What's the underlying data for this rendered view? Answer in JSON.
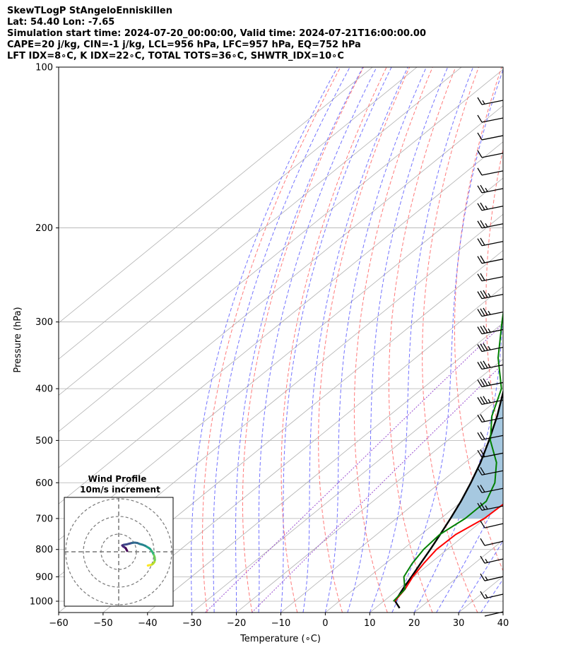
{
  "header": {
    "line1": "SkewTLogP StAngeloEnniskillen",
    "line2": "Lat: 54.40   Lon: -7.65",
    "line3": "Simulation start time: 2024-07-20_00:00:00, Valid time: 2024-07-21T16:00:00.00",
    "line4": "CAPE=20 j/kg, CIN=-1 j/kg, LCL=956 hPa, LFC=957 hPa, EQ=752 hPa",
    "line5": "LFT IDX=8∘C, K IDX=22∘C, TOTAL TOTS=36∘C, SHWTR_IDX=10∘C"
  },
  "colors": {
    "temperature": "#ff0000",
    "dewpoint": "#008000",
    "parcel": "#000000",
    "cape_fill": "#a6c8e0",
    "dry_adiabat": "#ff6b6b",
    "moist_adiabat": "#5a5aff",
    "mixing_ratio": "#9a4fd0",
    "isotherm": "#b0b0b0"
  },
  "chart_data": [
    {
      "type": "line",
      "kind": "skew-t log-p",
      "xlabel": "Temperature (∘C)",
      "ylabel": "Pressure (hPa)",
      "xlim": [
        -60,
        40
      ],
      "ylim": [
        1050,
        100
      ],
      "xticks": [
        -60,
        -50,
        -40,
        -30,
        -20,
        -10,
        0,
        10,
        20,
        30,
        40
      ],
      "yticks": [
        1000,
        900,
        800,
        700,
        600,
        500,
        400,
        300,
        200,
        100
      ],
      "y_scale": "log",
      "grid": true,
      "series": [
        {
          "role": "temperature",
          "points": [
            [
              1000,
              12.5
            ],
            [
              950,
              11.5
            ],
            [
              900,
              9.8
            ],
            [
              850,
              8.6
            ],
            [
              800,
              7.6
            ],
            [
              750,
              7.8
            ],
            [
              700,
              9.8
            ],
            [
              650,
              10.2
            ],
            [
              600,
              6.9
            ],
            [
              550,
              3.8
            ],
            [
              500,
              -1.2
            ],
            [
              450,
              -6.7
            ],
            [
              400,
              -12.7
            ],
            [
              350,
              -19.6
            ],
            [
              300,
              -27.4
            ],
            [
              280,
              -32.3
            ],
            [
              250,
              -38.5
            ],
            [
              225,
              -44.5
            ],
            [
              200,
              -51.8
            ],
            [
              175,
              -57.0
            ],
            [
              150,
              -58.6
            ],
            [
              125,
              -59.2
            ],
            [
              100,
              -58.2
            ]
          ]
        },
        {
          "role": "dewpoint",
          "points": [
            [
              1000,
              12.2
            ],
            [
              950,
              11.5
            ],
            [
              900,
              7.8
            ],
            [
              850,
              6.0
            ],
            [
              800,
              4.7
            ],
            [
              750,
              4.2
            ],
            [
              700,
              5.5
            ],
            [
              650,
              5.5
            ],
            [
              600,
              2.3
            ],
            [
              550,
              -2.9
            ],
            [
              500,
              -10.4
            ],
            [
              450,
              -16.8
            ],
            [
              400,
              -22.2
            ],
            [
              350,
              -31.5
            ],
            [
              300,
              -40.5
            ],
            [
              250,
              -50.8
            ],
            [
              225,
              -55.5
            ],
            [
              200,
              -61.7
            ],
            [
              180,
              -68.3
            ],
            [
              160,
              -72.9
            ],
            [
              130,
              -76.2
            ],
            [
              100,
              -79.0
            ]
          ]
        },
        {
          "role": "parcel",
          "points": [
            [
              1030,
              15.5
            ],
            [
              1000,
              12.6
            ],
            [
              950,
              11.0
            ],
            [
              900,
              9.5
            ],
            [
              850,
              7.9
            ],
            [
              800,
              6.2
            ],
            [
              750,
              4.3
            ],
            [
              700,
              2.2
            ],
            [
              650,
              -0.2
            ],
            [
              600,
              -3.1
            ],
            [
              550,
              -6.5
            ],
            [
              500,
              -10.7
            ],
            [
              450,
              -15.6
            ],
            [
              400,
              -21.6
            ],
            [
              350,
              -28.7
            ],
            [
              300,
              -37.3
            ],
            [
              250,
              -47.4
            ],
            [
              200,
              -59.0
            ],
            [
              175,
              -65.2
            ],
            [
              150,
              -71.7
            ],
            [
              125,
              -78.6
            ],
            [
              100,
              -85.8
            ]
          ]
        }
      ],
      "wind_barbs": {
        "speed_kt": [
          7,
          10,
          11,
          12,
          12,
          15,
          16,
          18,
          20,
          22,
          22,
          25,
          25,
          25,
          25,
          26,
          25,
          25,
          22,
          20,
          20,
          20,
          20,
          18,
          14,
          10,
          7,
          5,
          5,
          4
        ]
      }
    },
    {
      "type": "line",
      "kind": "hodograph",
      "title": "Wind Profile",
      "subtitle": "10m/s increment",
      "ring_step_ms": 10,
      "rings": 3,
      "points": [
        [
          4.8,
          0.5
        ],
        [
          4.4,
          1.2
        ],
        [
          4.0,
          2.0
        ],
        [
          3.2,
          2.6
        ],
        [
          2.5,
          3.0
        ],
        [
          2.0,
          3.6
        ],
        [
          3.0,
          4.0
        ],
        [
          4.5,
          4.2
        ],
        [
          6.0,
          4.6
        ],
        [
          7.5,
          5.0
        ],
        [
          9.0,
          5.2
        ],
        [
          10.5,
          5.0
        ],
        [
          12.0,
          4.4
        ],
        [
          13.5,
          4.0
        ],
        [
          15.0,
          3.4
        ],
        [
          16.0,
          2.8
        ],
        [
          17.0,
          2.2
        ],
        [
          17.8,
          1.6
        ],
        [
          18.4,
          0.8
        ],
        [
          19.0,
          0.0
        ],
        [
          19.5,
          -1.0
        ],
        [
          20.0,
          -2.0
        ],
        [
          20.4,
          -3.2
        ],
        [
          20.5,
          -4.5
        ],
        [
          20.2,
          -5.8
        ],
        [
          19.6,
          -6.6
        ],
        [
          18.8,
          -7.2
        ],
        [
          18.0,
          -7.5
        ],
        [
          17.2,
          -7.6
        ],
        [
          16.5,
          -7.8
        ]
      ]
    }
  ]
}
